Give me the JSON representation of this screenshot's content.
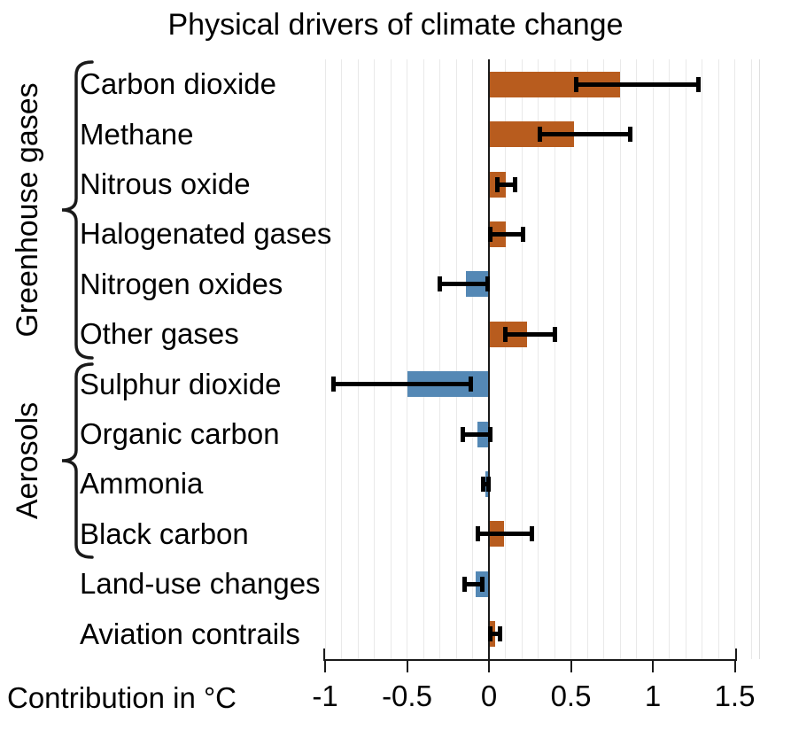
{
  "title": "Physical drivers of climate change",
  "xlabel": "Contribution in °C",
  "colors": {
    "bar_positive": "#b85c1e",
    "bar_negative": "#5488b5",
    "error_bar": "#000000",
    "gridline": "#e9e9e9",
    "axis": "#1a1a1a"
  },
  "groups": [
    {
      "label": "Greenhouse gases",
      "first_row": 0,
      "last_row": 5
    },
    {
      "label": "Aerosols",
      "first_row": 6,
      "last_row": 9
    }
  ],
  "chart_data": {
    "type": "bar",
    "orientation": "horizontal",
    "title": "Physical drivers of climate change",
    "xlabel": "Contribution in °C",
    "xlim": [
      -1.02,
      1.66
    ],
    "xticks": [
      -1,
      -0.5,
      0,
      0.5,
      1,
      1.5
    ],
    "xtick_labels": [
      "-1",
      "-0.5",
      "0",
      "0.5",
      "1",
      "1.5"
    ],
    "minor_grid_step": 0.1,
    "grid": "minor vertical gridlines every 0.1, legend none",
    "categories": [
      "Carbon dioxide",
      "Methane",
      "Nitrous oxide",
      "Halogenated gases",
      "Nitrogen oxides",
      "Other gases",
      "Sulphur dioxide",
      "Organic carbon",
      "Ammonia",
      "Black carbon",
      "Land-use changes",
      "Aviation contrails"
    ],
    "values": [
      0.8,
      0.52,
      0.1,
      0.1,
      -0.14,
      0.23,
      -0.5,
      -0.07,
      -0.02,
      0.09,
      -0.08,
      0.04
    ],
    "error_low": [
      0.53,
      0.31,
      0.05,
      0.01,
      -0.3,
      0.1,
      -0.95,
      -0.16,
      -0.035,
      -0.07,
      -0.15,
      0.01
    ],
    "error_high": [
      1.28,
      0.86,
      0.16,
      0.21,
      -0.01,
      0.4,
      -0.11,
      0.01,
      -0.005,
      0.26,
      -0.04,
      0.07
    ],
    "series_color_rule": "positive bars orange #b85c1e, negative bars blue #5488b5, black error bars",
    "group_brackets": [
      {
        "label": "Greenhouse gases",
        "categories": [
          "Carbon dioxide",
          "Methane",
          "Nitrous oxide",
          "Halogenated gases",
          "Nitrogen oxides",
          "Other gases"
        ]
      },
      {
        "label": "Aerosols",
        "categories": [
          "Sulphur dioxide",
          "Organic carbon",
          "Ammonia",
          "Black carbon"
        ]
      }
    ]
  }
}
